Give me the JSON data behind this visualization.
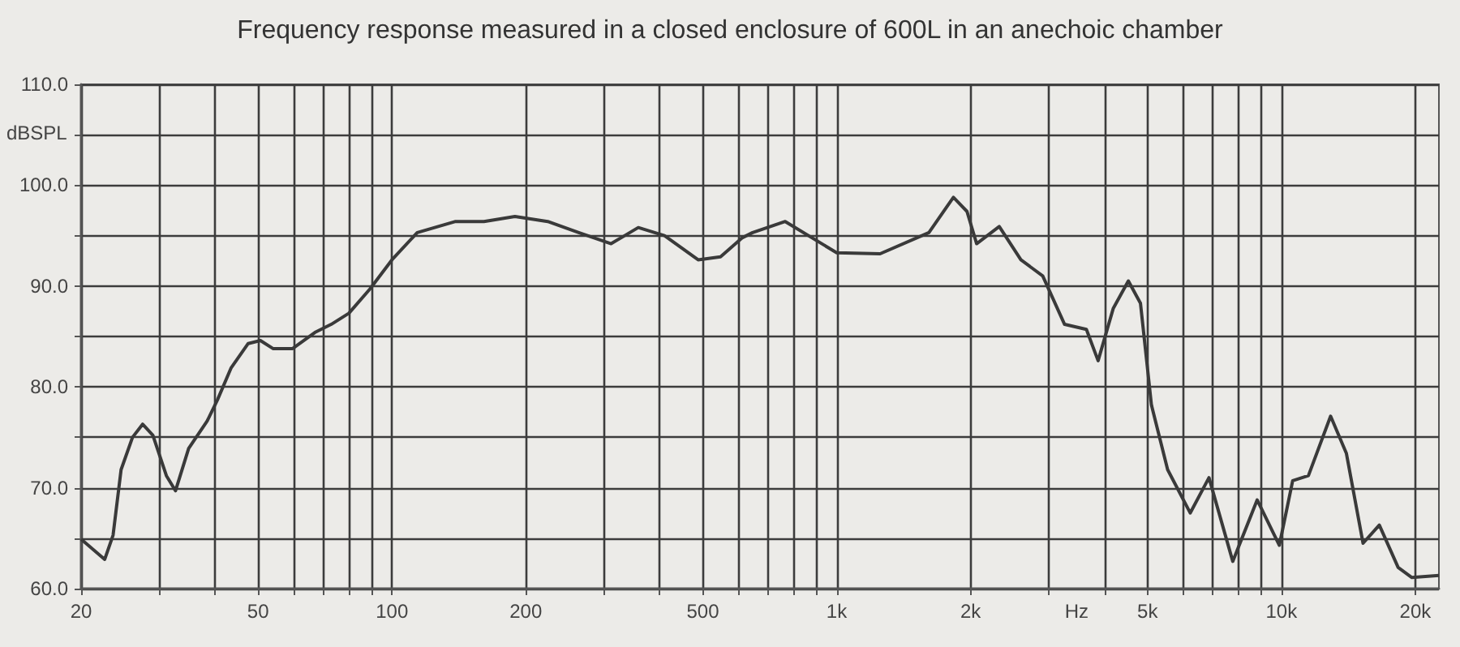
{
  "chart_data": {
    "type": "line",
    "title": "Frequency response measured in a closed enclosure of 600L in an anechoic chamber",
    "xlabel": "Hz",
    "ylabel": "dBSPL",
    "log": "x",
    "grid": true,
    "marker": "none",
    "line_style": "solid",
    "xlim": [
      20,
      22600
    ],
    "ylim": [
      60,
      110
    ],
    "xticks": [
      20,
      {
        "value": 30,
        "label": null
      },
      {
        "value": 40,
        "label": null
      },
      50,
      {
        "value": 60,
        "label": null
      },
      {
        "value": 70,
        "label": null
      },
      {
        "value": 80,
        "label": null
      },
      {
        "value": 90,
        "label": null
      },
      100,
      200,
      {
        "value": 300,
        "label": null
      },
      {
        "value": 400,
        "label": null
      },
      500,
      {
        "value": 600,
        "label": null
      },
      {
        "value": 700,
        "label": null
      },
      {
        "value": 800,
        "label": null
      },
      {
        "value": 900,
        "label": null
      },
      {
        "value": 1000,
        "label": "1k"
      },
      {
        "value": 2000,
        "label": "2k"
      },
      {
        "value": 3000,
        "label": null
      },
      {
        "value": 4000,
        "label": null
      },
      {
        "value": 5000,
        "label": "5k"
      },
      {
        "value": 6000,
        "label": null
      },
      {
        "value": 7000,
        "label": null
      },
      {
        "value": 8000,
        "label": null
      },
      {
        "value": 9000,
        "label": null
      },
      {
        "value": 10000,
        "label": "10k"
      },
      {
        "value": 20000,
        "label": "20k"
      }
    ],
    "yticks": [
      {
        "value": 60,
        "label": "60.0"
      },
      {
        "value": 65,
        "label": null
      },
      {
        "value": 70,
        "label": "70.0"
      },
      {
        "value": 75,
        "label": null
      },
      {
        "value": 80,
        "label": "80.0"
      },
      {
        "value": 85,
        "label": null
      },
      {
        "value": 90,
        "label": "90.0"
      },
      {
        "value": 95,
        "label": null
      },
      {
        "value": 100,
        "label": "100.0"
      },
      {
        "value": 105,
        "label": null
      },
      {
        "value": 110,
        "label": "110.0"
      }
    ],
    "series": [
      {
        "color": "#3a3a3a",
        "x": [
          20,
          22.6,
          23.6,
          24.6,
          26.1,
          27.5,
          29,
          31.1,
          32.6,
          34.9,
          38.4,
          40.5,
          43.5,
          47.5,
          50.6,
          54,
          59.8,
          67.1,
          73,
          80,
          89.2,
          100,
          114,
          139,
          161,
          189,
          224,
          263,
          311,
          358,
          410,
          488,
          548,
          614,
          647,
          766,
          1000,
          1252,
          1612,
          1830,
          1963,
          2064,
          2320,
          2595,
          2906,
          3254,
          3643,
          3871,
          4188,
          4527,
          4820,
          5102,
          5548,
          6236,
          6872,
          7773,
          8821,
          9893,
          10600,
          11500,
          12900,
          14000,
          15260,
          16600,
          18300,
          19650,
          22600
        ],
        "values": [
          64.9,
          62.9,
          65.3,
          71.8,
          75.0,
          76.3,
          75.2,
          71.2,
          69.7,
          73.9,
          76.6,
          78.7,
          81.9,
          84.3,
          84.6,
          83.8,
          83.8,
          85.4,
          86.2,
          87.3,
          89.7,
          92.6,
          95.3,
          96.4,
          96.4,
          96.9,
          96.4,
          95.3,
          94.2,
          95.8,
          95.0,
          92.6,
          92.9,
          94.8,
          95.3,
          96.4,
          93.3,
          93.2,
          95.3,
          98.8,
          97.4,
          94.2,
          95.9,
          92.6,
          91.0,
          86.2,
          85.7,
          82.6,
          87.8,
          90.5,
          88.3,
          78.2,
          71.8,
          67.5,
          71.0,
          62.7,
          68.8,
          64.3,
          70.7,
          71.2,
          77.1,
          73.4,
          64.5,
          66.3,
          62.1,
          61.1,
          61.3
        ]
      }
    ]
  }
}
